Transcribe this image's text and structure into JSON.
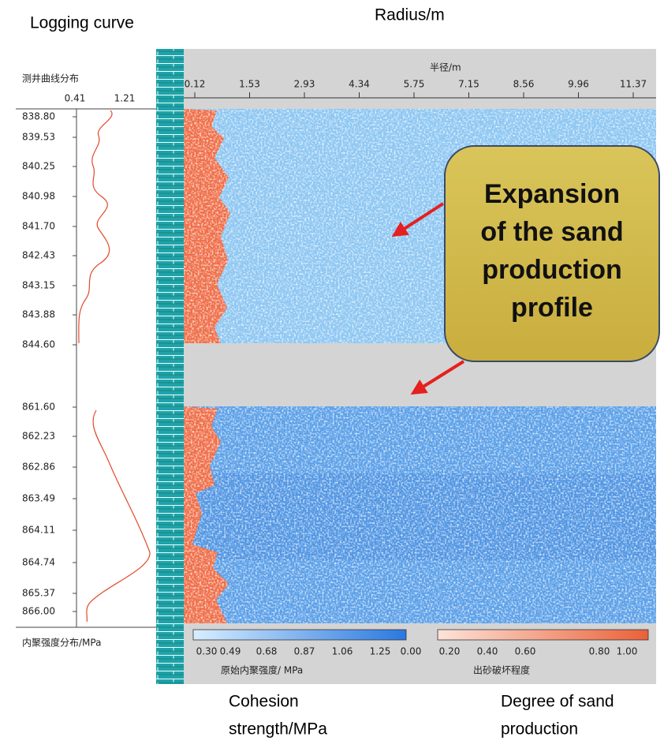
{
  "labels": {
    "logging_curve": "Logging curve",
    "radius": "Radius/m",
    "cohesion": [
      "Cohesion",
      "strength/MPa"
    ],
    "degree": [
      "Degree of sand",
      "production"
    ]
  },
  "panel": {
    "radius_title": "半径/m",
    "curve_title": "测井曲线分布",
    "curve_ticks": [
      "0.41",
      "1.21"
    ],
    "radius_ticks": [
      "0.12",
      "1.53",
      "2.93",
      "4.34",
      "5.75",
      "7.15",
      "8.56",
      "9.96",
      "11.37"
    ],
    "depth_ticks": [
      "838.80",
      "839.53",
      "840.25",
      "840.98",
      "841.70",
      "842.43",
      "843.15",
      "843.88",
      "844.60",
      "861.60",
      "862.23",
      "862.86",
      "863.49",
      "864.11",
      "864.74",
      "865.37",
      "866.00"
    ],
    "cohesion_axis_title": "内聚强度分布/MPa",
    "colorbar_cohesion": {
      "ticks": [
        "0.30",
        "0.49",
        "0.68",
        "0.87",
        "1.06",
        "1.25"
      ],
      "label": "原始内聚强度/ MPa"
    },
    "colorbar_sand": {
      "ticks": [
        "0.00",
        "0.20",
        "0.40",
        "0.60",
        "0.80",
        "1.00"
      ],
      "label": "出砂破坏程度"
    }
  },
  "callout": {
    "lines": [
      "Expansion",
      "of the sand",
      "production",
      "profile"
    ]
  }
}
